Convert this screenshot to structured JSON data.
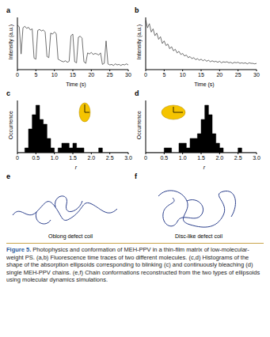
{
  "chart_data": [
    {
      "panel": "a",
      "type": "line",
      "xlabel": "Time (s)",
      "ylabel": "Intensity (a.u.)",
      "color": "#333333",
      "tick_labels": "x",
      "xlim": [
        0,
        30
      ],
      "xticks": [
        0,
        5,
        10,
        15,
        20,
        25,
        30
      ],
      "ylim": [
        0,
        10
      ],
      "x": [
        0,
        0.5,
        1,
        1.5,
        2,
        2.5,
        3,
        3.5,
        4,
        4.5,
        5,
        5.5,
        6,
        6.5,
        7,
        7.5,
        8,
        8.5,
        9,
        9.5,
        10,
        10.5,
        11,
        11.5,
        12,
        12.5,
        13,
        13.5,
        14,
        14.5,
        15,
        15.5,
        16,
        16.5,
        17,
        17.5,
        18,
        18.5,
        19,
        19.5,
        20,
        20.5,
        21,
        21.5,
        22,
        22.5,
        23,
        23.5,
        24,
        24.5,
        25,
        25.5,
        26,
        26.5,
        27,
        27.5,
        28,
        28.5,
        29,
        29.5,
        30
      ],
      "values": [
        8.5,
        8.2,
        3.0,
        8.0,
        8.3,
        7.9,
        8.1,
        7.6,
        7.8,
        2.2,
        2.0,
        7.5,
        7.7,
        7.4,
        7.6,
        7.2,
        2.5,
        2.3,
        7.0,
        6.8,
        7.2,
        6.9,
        2.0,
        1.8,
        1.6,
        1.5,
        1.7,
        1.4,
        1.6,
        6.5,
        6.8,
        1.5,
        1.3,
        6.2,
        6.4,
        6.0,
        1.5,
        1.2,
        3.2,
        3.0,
        3.3,
        2.9,
        3.1,
        3.0,
        2.8,
        3.2,
        1.0,
        1.2,
        5.5,
        1.1,
        0.9,
        1.0,
        0.8,
        1.1,
        0.9,
        1.0,
        0.8,
        1.0,
        0.9,
        1.1,
        0.9
      ]
    },
    {
      "panel": "b",
      "type": "line",
      "xlabel": "Time (s)",
      "ylabel": "Intensity (a.u.)",
      "color": "#333333",
      "tick_labels": "x",
      "xlim": [
        0,
        30
      ],
      "xticks": [
        0,
        5,
        10,
        15,
        20,
        25,
        30
      ],
      "ylim": [
        0,
        10
      ],
      "x": [
        0,
        0.5,
        1,
        1.5,
        2,
        2.5,
        3,
        3.5,
        4,
        4.5,
        5,
        5.5,
        6,
        6.5,
        7,
        7.5,
        8,
        8.5,
        9,
        9.5,
        10,
        10.5,
        11,
        11.5,
        12,
        12.5,
        13,
        13.5,
        14,
        14.5,
        15,
        15.5,
        16,
        16.5,
        17,
        17.5,
        18,
        18.5,
        19,
        19.5,
        20,
        20.5,
        21,
        21.5,
        22,
        22.5,
        23,
        23.5,
        24,
        24.5,
        25,
        25.5,
        26,
        26.5,
        27,
        27.5,
        28,
        28.5,
        29,
        29.5,
        30
      ],
      "values": [
        9.5,
        8.0,
        8.8,
        7.2,
        7.8,
        6.5,
        7.0,
        5.8,
        6.3,
        5.0,
        5.5,
        4.6,
        4.9,
        4.0,
        4.4,
        3.6,
        3.9,
        3.2,
        3.5,
        2.9,
        3.1,
        2.6,
        2.8,
        2.3,
        2.5,
        2.1,
        2.3,
        1.9,
        2.1,
        1.8,
        2.0,
        1.7,
        1.9,
        1.6,
        1.8,
        1.5,
        1.7,
        1.5,
        1.6,
        1.4,
        1.6,
        1.3,
        1.5,
        1.4,
        1.5,
        1.3,
        1.4,
        1.2,
        1.4,
        1.3,
        1.4,
        1.2,
        1.3,
        1.2,
        1.3,
        1.1,
        1.3,
        1.2,
        1.2,
        1.1,
        1.2
      ]
    },
    {
      "panel": "c",
      "type": "histogram",
      "xlabel": "r",
      "ylabel": "Occurrence",
      "color": "#000000",
      "tick_labels": "x",
      "xlim": [
        0,
        3
      ],
      "xticks": [
        0,
        0.5,
        {
          "value": 1,
          "label": "1.0"
        },
        {
          "value": 1.5,
          "label": "1.5"
        },
        {
          "value": 2,
          "label": "2.0"
        },
        {
          "value": 2.5,
          "label": "2.5"
        },
        {
          "value": 3,
          "label": "3.0"
        }
      ],
      "ylim": [
        0,
        11
      ],
      "bins": [
        0,
        0.1,
        0.2,
        0.3,
        0.4,
        0.5,
        0.6,
        0.7,
        0.8,
        0.9,
        1.0,
        1.1,
        1.2,
        1.3,
        1.4,
        1.5,
        1.6,
        1.7,
        1.8,
        1.9,
        2.0,
        2.1,
        2.2,
        2.3,
        2.4,
        2.5,
        2.6,
        2.7,
        2.8,
        2.9,
        3.0
      ],
      "counts": [
        0,
        0,
        1,
        5,
        8,
        10,
        7,
        6,
        3,
        1,
        0,
        1,
        2,
        2,
        1,
        2,
        1,
        1,
        0,
        0,
        0,
        0,
        1,
        0,
        0,
        0,
        0,
        0,
        0,
        0
      ]
    },
    {
      "panel": "d",
      "type": "histogram",
      "xlabel": "r",
      "ylabel": "Occurrence",
      "color": "#000000",
      "tick_labels": "x",
      "xlim": [
        0,
        3
      ],
      "xticks": [
        0,
        0.5,
        {
          "value": 1,
          "label": "1.0"
        },
        {
          "value": 1.5,
          "label": "1.5"
        },
        {
          "value": 2,
          "label": "2.0"
        },
        {
          "value": 2.5,
          "label": "2.5"
        },
        {
          "value": 3,
          "label": "3.0"
        }
      ],
      "ylim": [
        0,
        11
      ],
      "bins": [
        0,
        0.1,
        0.2,
        0.3,
        0.4,
        0.5,
        0.6,
        0.7,
        0.8,
        0.9,
        1.0,
        1.1,
        1.2,
        1.3,
        1.4,
        1.5,
        1.6,
        1.7,
        1.8,
        1.9,
        2.0,
        2.1,
        2.2,
        2.3,
        2.4,
        2.5,
        2.6,
        2.7,
        2.8,
        2.9,
        3.0
      ],
      "counts": [
        0,
        0,
        0,
        0,
        0,
        1,
        1,
        0,
        0,
        2,
        2,
        1,
        3,
        3,
        4,
        7,
        10,
        8,
        4,
        2,
        1,
        0,
        0,
        0,
        0,
        1,
        0,
        0,
        0,
        0
      ]
    }
  ],
  "conformations": [
    {
      "panel": "e",
      "label": "Oblong defect coil"
    },
    {
      "panel": "f",
      "label": "Disc-like defect coil"
    }
  ],
  "caption": {
    "label": "Figure 5.",
    "text": "Photophysics and conformation of MEH-PPV in a thin-film matrix of low-molecular-weight PS. (a,b) Fluorescence time traces of two different molecules. (c,d) Histograms of the shape of the absorption ellipsoids corresponding to blinking (c) and continuously bleaching (d) single MEH-PPV chains. (e,f) Chain conformations reconstructed from the two types of ellipsoids using molecular dynamics simulations."
  }
}
